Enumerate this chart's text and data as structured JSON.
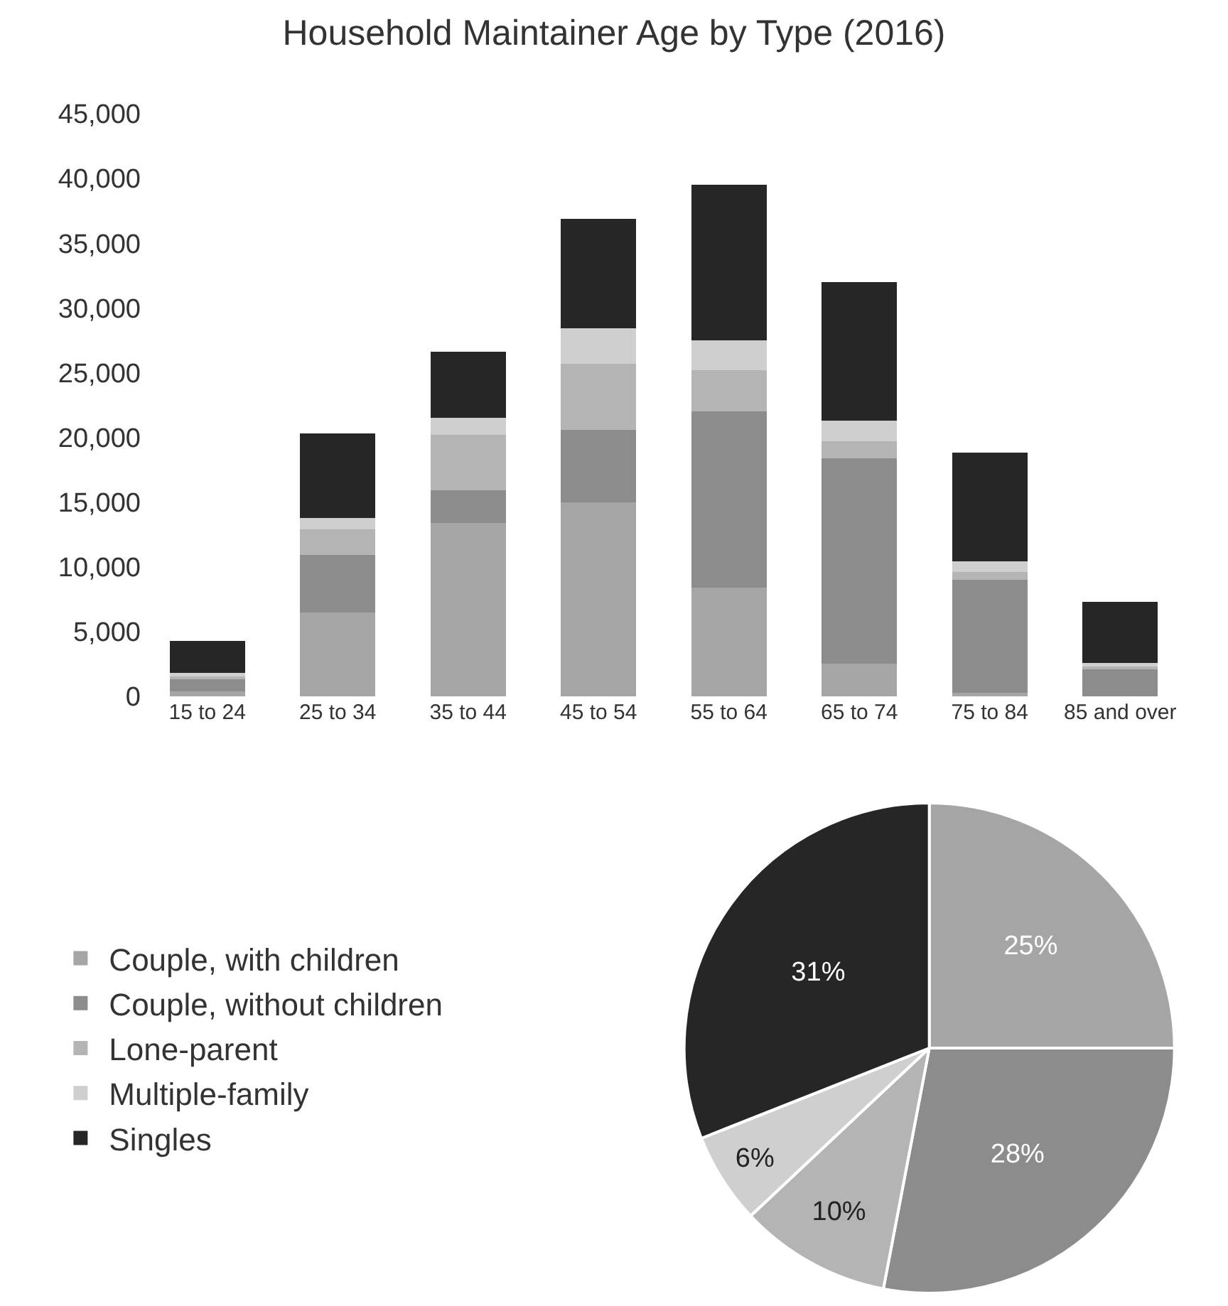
{
  "chart_data": [
    {
      "type": "bar",
      "title": "Household Maintainer Age by Type (2016)",
      "stacked": true,
      "legend": false,
      "categories": [
        "15 to 24",
        "25 to 34",
        "35 to 44",
        "45 to 54",
        "55 to 64",
        "65 to 74",
        "75 to 84",
        "85 and over"
      ],
      "ylim": [
        0,
        45000
      ],
      "yticks": [
        0,
        {
          "value": 5000,
          "label": "5,000"
        },
        {
          "value": 10000,
          "label": "10,000"
        },
        {
          "value": 15000,
          "label": "15,000"
        },
        {
          "value": 20000,
          "label": "20,000"
        },
        {
          "value": 25000,
          "label": "25,000"
        },
        {
          "value": 30000,
          "label": "30,000"
        },
        {
          "value": 35000,
          "label": "35,000"
        },
        {
          "value": 40000,
          "label": "40,000"
        },
        {
          "value": 45000,
          "label": "45,000"
        }
      ],
      "series": [
        {
          "color": "#a5a5a5",
          "values": [
            400,
            6500,
            13400,
            15000,
            8400,
            2500,
            300,
            null
          ]
        },
        {
          "color": "#8c8c8c",
          "values": [
            900,
            4400,
            2500,
            5600,
            13600,
            15900,
            8700,
            2100
          ]
        },
        {
          "color": "#b4b4b4",
          "values": [
            300,
            2000,
            4300,
            5100,
            3200,
            1300,
            600,
            300
          ]
        },
        {
          "color": "#cfcfcf",
          "values": [
            200,
            900,
            1300,
            2700,
            2300,
            1600,
            800,
            200
          ]
        },
        {
          "color": "#262626",
          "values": [
            2500,
            6500,
            5100,
            8500,
            12000,
            10700,
            8400,
            4700
          ]
        }
      ]
    },
    {
      "type": "pie",
      "legend": "left",
      "categories": [
        "Couple, with children",
        "Couple, without children",
        "Lone-parent",
        "Multiple-family",
        "Singles"
      ],
      "values": [
        25,
        28,
        10,
        6,
        31
      ],
      "colors": [
        "#a5a5a5",
        "#8c8c8c",
        "#b4b4b4",
        "#cfcfcf",
        "#262626"
      ],
      "value_labels": [
        "25%",
        "28%",
        "10%",
        "6%",
        "31%"
      ]
    }
  ]
}
